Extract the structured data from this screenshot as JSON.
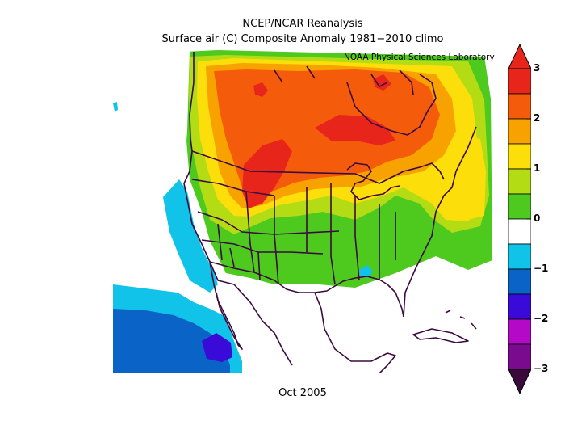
{
  "header": {
    "source": "NCEP/NCAR Reanalysis",
    "subtitle": "Surface air (C) Composite Anomaly 1981−2010 climo",
    "credit": "NOAA Physical Sciences Laboratory"
  },
  "footer": {
    "period": "Oct 2005"
  },
  "colorbar": {
    "tick_labels": [
      "3",
      "2",
      "1",
      "0",
      "−1",
      "−2",
      "−3"
    ],
    "bins": [
      {
        "from": 2.5,
        "to": 3.0,
        "color": "#e8251b"
      },
      {
        "from": 2.0,
        "to": 2.5,
        "color": "#f45c0c"
      },
      {
        "from": 1.5,
        "to": 2.0,
        "color": "#f8a200"
      },
      {
        "from": 1.0,
        "to": 1.5,
        "color": "#fcde0a"
      },
      {
        "from": 0.5,
        "to": 1.0,
        "color": "#b4dc14"
      },
      {
        "from": 0.0,
        "to": 0.5,
        "color": "#4ec91e"
      },
      {
        "from": -0.5,
        "to": 0.0,
        "color": "#ffffff"
      },
      {
        "from": -1.0,
        "to": -0.5,
        "color": "#11c3e8"
      },
      {
        "from": -1.5,
        "to": -1.0,
        "color": "#0a63c6"
      },
      {
        "from": -2.0,
        "to": -1.5,
        "color": "#3a0ad8"
      },
      {
        "from": -2.5,
        "to": -2.0,
        "color": "#b40ac8"
      },
      {
        "from": -3.0,
        "to": -2.5,
        "color": "#7a0a8e"
      }
    ],
    "over_color": "#e8251b",
    "under_color": "#3a0a3c"
  },
  "map": {
    "units": "C",
    "regions": [
      {
        "name": "northwest-canada-anomaly",
        "level": 1.0
      },
      {
        "name": "prairie-warm-core",
        "level": 2.8
      },
      {
        "name": "hudson-bay-warm-core",
        "level": 2.7
      },
      {
        "name": "gulf-mexico-cool-spot",
        "level": -0.8
      },
      {
        "name": "baja-pacific-cold-core",
        "level": -1.8
      }
    ]
  }
}
